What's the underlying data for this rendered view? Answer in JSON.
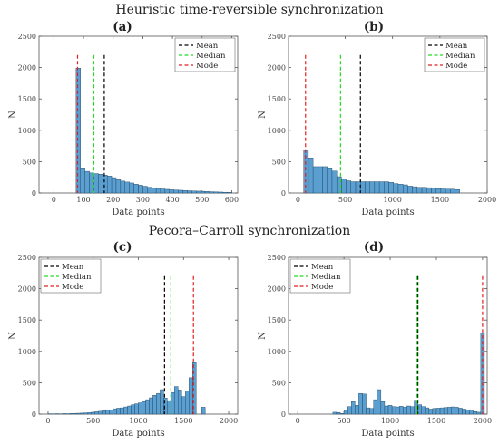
{
  "headings": [
    "Heuristic time-reversible synchronization",
    "Pecora–Carroll synchronization"
  ],
  "colors": {
    "bar_fill": "#5b9fd1",
    "bar_edge": "#1b3f5c",
    "mean": "#000000",
    "median": "#22dd22",
    "mode": "#e02020"
  },
  "chart_data": [
    {
      "label": "(a)",
      "type": "histogram",
      "xlabel": "Data points",
      "ylabel": "N",
      "xlim": [
        -50,
        620
      ],
      "ylim": [
        0,
        2500
      ],
      "xticks": [
        0,
        100,
        200,
        300,
        400,
        500,
        600
      ],
      "yticks": [
        0,
        500,
        1000,
        1500,
        2000,
        2500
      ],
      "bins": [
        [
          75,
          90,
          1990
        ],
        [
          90,
          105,
          400
        ],
        [
          105,
          120,
          345
        ],
        [
          120,
          135,
          320
        ],
        [
          135,
          150,
          310
        ],
        [
          150,
          165,
          300
        ],
        [
          165,
          180,
          285
        ],
        [
          180,
          195,
          270
        ],
        [
          195,
          210,
          245
        ],
        [
          210,
          225,
          215
        ],
        [
          225,
          240,
          190
        ],
        [
          240,
          255,
          175
        ],
        [
          255,
          270,
          160
        ],
        [
          270,
          285,
          140
        ],
        [
          285,
          300,
          125
        ],
        [
          300,
          315,
          108
        ],
        [
          315,
          330,
          92
        ],
        [
          330,
          345,
          82
        ],
        [
          345,
          360,
          72
        ],
        [
          360,
          375,
          65
        ],
        [
          375,
          390,
          58
        ],
        [
          390,
          405,
          52
        ],
        [
          405,
          420,
          48
        ],
        [
          420,
          435,
          44
        ],
        [
          435,
          450,
          40
        ],
        [
          450,
          465,
          36
        ],
        [
          465,
          480,
          33
        ],
        [
          480,
          495,
          30
        ],
        [
          495,
          510,
          27
        ],
        [
          510,
          525,
          24
        ],
        [
          525,
          540,
          20
        ],
        [
          540,
          555,
          17
        ],
        [
          555,
          570,
          15
        ],
        [
          570,
          585,
          12
        ],
        [
          585,
          600,
          10
        ]
      ],
      "lines": {
        "mean": 170,
        "median": 135,
        "mode": 80
      },
      "line_top": 2200,
      "legend": [
        "Mean",
        "Median",
        "Mode"
      ],
      "legend_position": "top-right"
    },
    {
      "label": "(b)",
      "type": "histogram",
      "xlabel": "Data points",
      "ylabel": "N",
      "xlim": [
        -100,
        2000
      ],
      "ylim": [
        0,
        2500
      ],
      "xticks": [
        0,
        500,
        1000,
        1500,
        2000
      ],
      "yticks": [
        0,
        500,
        1000,
        1500,
        2000,
        2500
      ],
      "bins": [
        [
          60,
          110,
          680
        ],
        [
          110,
          160,
          560
        ],
        [
          160,
          210,
          420
        ],
        [
          210,
          260,
          420
        ],
        [
          260,
          310,
          420
        ],
        [
          310,
          360,
          400
        ],
        [
          360,
          410,
          350
        ],
        [
          410,
          460,
          260
        ],
        [
          460,
          510,
          220
        ],
        [
          510,
          560,
          195
        ],
        [
          560,
          610,
          180
        ],
        [
          610,
          660,
          180
        ],
        [
          660,
          710,
          180
        ],
        [
          710,
          760,
          180
        ],
        [
          760,
          810,
          180
        ],
        [
          810,
          860,
          180
        ],
        [
          860,
          910,
          180
        ],
        [
          910,
          960,
          180
        ],
        [
          960,
          1010,
          170
        ],
        [
          1010,
          1060,
          150
        ],
        [
          1060,
          1110,
          140
        ],
        [
          1110,
          1160,
          130
        ],
        [
          1160,
          1210,
          110
        ],
        [
          1210,
          1260,
          100
        ],
        [
          1260,
          1310,
          90
        ],
        [
          1310,
          1360,
          90
        ],
        [
          1360,
          1410,
          85
        ],
        [
          1410,
          1460,
          75
        ],
        [
          1460,
          1510,
          70
        ],
        [
          1510,
          1560,
          65
        ],
        [
          1560,
          1610,
          62
        ],
        [
          1610,
          1660,
          60
        ],
        [
          1660,
          1710,
          55
        ]
      ],
      "lines": {
        "mean": 660,
        "median": 450,
        "mode": 80
      },
      "line_top": 2200,
      "legend": [
        "Mean",
        "Median",
        "Mode"
      ],
      "legend_position": "top-right"
    },
    {
      "label": "(c)",
      "type": "histogram",
      "xlabel": "Data points",
      "ylabel": "N",
      "xlim": [
        -100,
        2100
      ],
      "ylim": [
        0,
        2500
      ],
      "xticks": [
        0,
        500,
        1000,
        1500,
        2000
      ],
      "yticks": [
        0,
        500,
        1000,
        1500,
        2000,
        2500
      ],
      "bins": [
        [
          0,
          40,
          5
        ],
        [
          40,
          80,
          3
        ],
        [
          80,
          120,
          6
        ],
        [
          120,
          160,
          4
        ],
        [
          160,
          200,
          8
        ],
        [
          200,
          240,
          6
        ],
        [
          240,
          280,
          10
        ],
        [
          280,
          320,
          12
        ],
        [
          320,
          360,
          14
        ],
        [
          360,
          400,
          16
        ],
        [
          400,
          440,
          20
        ],
        [
          440,
          480,
          24
        ],
        [
          480,
          520,
          30
        ],
        [
          520,
          560,
          38
        ],
        [
          560,
          600,
          45
        ],
        [
          600,
          640,
          55
        ],
        [
          640,
          680,
          70
        ],
        [
          680,
          720,
          65
        ],
        [
          720,
          760,
          85
        ],
        [
          760,
          800,
          95
        ],
        [
          800,
          840,
          100
        ],
        [
          840,
          880,
          115
        ],
        [
          880,
          920,
          130
        ],
        [
          920,
          960,
          150
        ],
        [
          960,
          1000,
          165
        ],
        [
          1000,
          1040,
          180
        ],
        [
          1040,
          1080,
          200
        ],
        [
          1080,
          1120,
          230
        ],
        [
          1120,
          1160,
          260
        ],
        [
          1160,
          1200,
          300
        ],
        [
          1200,
          1240,
          330
        ],
        [
          1240,
          1280,
          390
        ],
        [
          1280,
          1320,
          255
        ],
        [
          1320,
          1360,
          215
        ],
        [
          1360,
          1400,
          345
        ],
        [
          1400,
          1440,
          440
        ],
        [
          1440,
          1480,
          385
        ],
        [
          1480,
          1520,
          280
        ],
        [
          1520,
          1560,
          370
        ],
        [
          1560,
          1600,
          580
        ],
        [
          1600,
          1640,
          820
        ],
        [
          1700,
          1740,
          110
        ]
      ],
      "lines": {
        "mean": 1290,
        "median": 1360,
        "mode": 1610
      },
      "line_top": 2200,
      "legend": [
        "Mean",
        "Median",
        "Mode"
      ],
      "legend_position": "top-left"
    },
    {
      "label": "(d)",
      "type": "histogram",
      "xlabel": "Data points",
      "ylabel": "N",
      "xlim": [
        -100,
        2050
      ],
      "ylim": [
        0,
        2500
      ],
      "xticks": [
        0,
        500,
        1000,
        1500,
        2000
      ],
      "yticks": [
        0,
        500,
        1000,
        1500,
        2000,
        2500
      ],
      "bins": [
        [
          380,
          420,
          30
        ],
        [
          420,
          460,
          25
        ],
        [
          460,
          500,
          10
        ],
        [
          500,
          540,
          60
        ],
        [
          540,
          580,
          120
        ],
        [
          580,
          620,
          200
        ],
        [
          620,
          660,
          140
        ],
        [
          660,
          700,
          330
        ],
        [
          700,
          740,
          320
        ],
        [
          740,
          780,
          100
        ],
        [
          780,
          820,
          90
        ],
        [
          820,
          860,
          230
        ],
        [
          860,
          900,
          390
        ],
        [
          900,
          940,
          200
        ],
        [
          940,
          980,
          130
        ],
        [
          980,
          1020,
          140
        ],
        [
          1020,
          1060,
          120
        ],
        [
          1060,
          1100,
          115
        ],
        [
          1100,
          1140,
          125
        ],
        [
          1140,
          1180,
          110
        ],
        [
          1180,
          1220,
          130
        ],
        [
          1220,
          1260,
          120
        ],
        [
          1260,
          1300,
          220
        ],
        [
          1300,
          1340,
          150
        ],
        [
          1340,
          1380,
          120
        ],
        [
          1380,
          1420,
          100
        ],
        [
          1420,
          1460,
          80
        ],
        [
          1460,
          1500,
          90
        ],
        [
          1500,
          1540,
          95
        ],
        [
          1540,
          1580,
          100
        ],
        [
          1580,
          1620,
          105
        ],
        [
          1620,
          1660,
          110
        ],
        [
          1660,
          1700,
          115
        ],
        [
          1700,
          1740,
          110
        ],
        [
          1740,
          1780,
          95
        ],
        [
          1780,
          1820,
          80
        ],
        [
          1820,
          1860,
          70
        ],
        [
          1860,
          1900,
          60
        ],
        [
          1900,
          1940,
          40
        ],
        [
          1940,
          1980,
          30
        ],
        [
          1980,
          2020,
          1290
        ]
      ],
      "lines": {
        "mean": 1300,
        "median": 1290,
        "mode": 2000
      },
      "line_top": 2200,
      "legend": [
        "Mean",
        "Median",
        "Mode"
      ],
      "legend_position": "top-left"
    }
  ]
}
